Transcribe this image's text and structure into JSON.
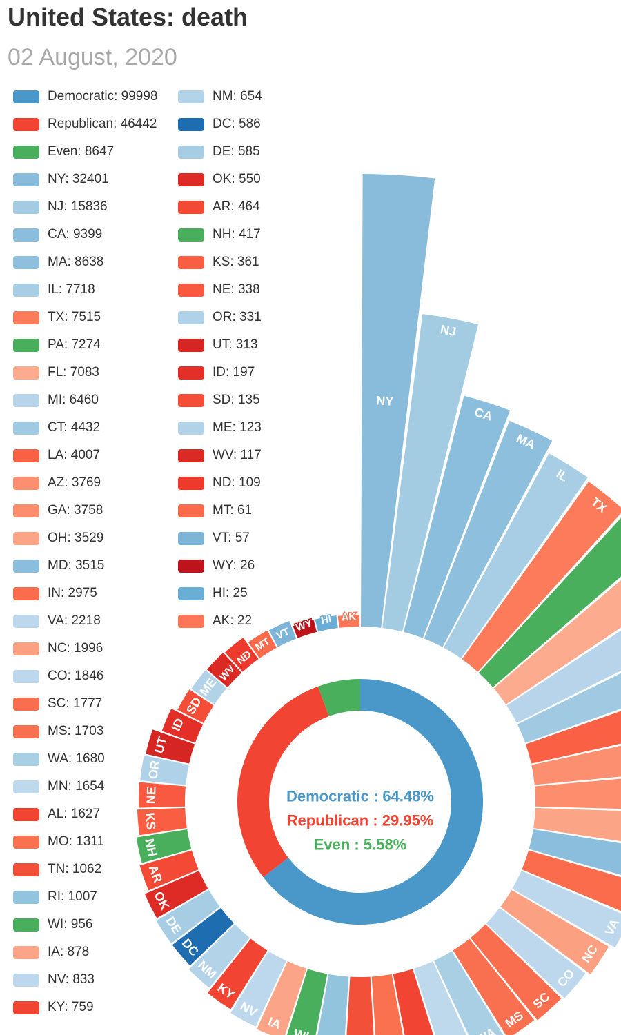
{
  "title": "United States: death",
  "subtitle": "02 August, 2020",
  "colors": {
    "Democratic": "#4a98c9",
    "Republican": "#f14432",
    "Even": "#4aaf5c"
  },
  "chart_data": {
    "type": "radial-bar",
    "parties": [
      {
        "name": "Democratic",
        "value": 99998,
        "color": "#4a98c9",
        "pct_label": "Democratic : 64.48%"
      },
      {
        "name": "Republican",
        "value": 46442,
        "color": "#f14432",
        "pct_label": "Republican : 29.95%"
      },
      {
        "name": "Even",
        "value": 8647,
        "color": "#4aaf5c",
        "pct_label": "Even : 5.58%"
      }
    ],
    "states": [
      {
        "name": "NY",
        "value": 32401,
        "color": "#89bcdb"
      },
      {
        "name": "NJ",
        "value": 15836,
        "color": "#a3cce3"
      },
      {
        "name": "CA",
        "value": 9399,
        "color": "#8bbedc"
      },
      {
        "name": "MA",
        "value": 8638,
        "color": "#8ebfdc"
      },
      {
        "name": "IL",
        "value": 7718,
        "color": "#a7cee4"
      },
      {
        "name": "TX",
        "value": 7515,
        "color": "#fb7b5b"
      },
      {
        "name": "PA",
        "value": 7274,
        "color": "#4aaf5c"
      },
      {
        "name": "FL",
        "value": 7083,
        "color": "#fcab8f"
      },
      {
        "name": "MI",
        "value": 6460,
        "color": "#b7d4ea"
      },
      {
        "name": "CT",
        "value": 4432,
        "color": "#9fcae1"
      },
      {
        "name": "LA",
        "value": 4007,
        "color": "#f96044"
      },
      {
        "name": "AZ",
        "value": 3769,
        "color": "#fc8f6f"
      },
      {
        "name": "GA",
        "value": 3758,
        "color": "#fc8e6e"
      },
      {
        "name": "OH",
        "value": 3529,
        "color": "#fca486"
      },
      {
        "name": "MD",
        "value": 3515,
        "color": "#8bbedc"
      },
      {
        "name": "IN",
        "value": 2975,
        "color": "#fa6c4c"
      },
      {
        "name": "VA",
        "value": 2218,
        "color": "#bdd8ec"
      },
      {
        "name": "NC",
        "value": 1996,
        "color": "#fca082"
      },
      {
        "name": "CO",
        "value": 1846,
        "color": "#bdd7ec"
      },
      {
        "name": "SC",
        "value": 1777,
        "color": "#f96e4e"
      },
      {
        "name": "MS",
        "value": 1703,
        "color": "#f8704f"
      },
      {
        "name": "WA",
        "value": 1680,
        "color": "#a9cfe5"
      },
      {
        "name": "MN",
        "value": 1654,
        "color": "#bed8ec"
      },
      {
        "name": "AL",
        "value": 1627,
        "color": "#f14432"
      },
      {
        "name": "MO",
        "value": 1311,
        "color": "#f9714f"
      },
      {
        "name": "TN",
        "value": 1062,
        "color": "#f3503a"
      },
      {
        "name": "RI",
        "value": 1007,
        "color": "#93c4de"
      },
      {
        "name": "WI",
        "value": 956,
        "color": "#4aaf5c"
      },
      {
        "name": "IA",
        "value": 878,
        "color": "#fca487"
      },
      {
        "name": "NV",
        "value": 833,
        "color": "#bdd7ec"
      },
      {
        "name": "KY",
        "value": 759,
        "color": "#f14432"
      },
      {
        "name": "NM",
        "value": 654,
        "color": "#b3d3e8"
      },
      {
        "name": "DC",
        "value": 586,
        "color": "#1f6db1"
      },
      {
        "name": "DE",
        "value": 585,
        "color": "#a6cde4"
      },
      {
        "name": "OK",
        "value": 550,
        "color": "#df2b25"
      },
      {
        "name": "AR",
        "value": 464,
        "color": "#f24a35"
      },
      {
        "name": "NH",
        "value": 417,
        "color": "#4aaf5c"
      },
      {
        "name": "KS",
        "value": 361,
        "color": "#fa5e42"
      },
      {
        "name": "NE",
        "value": 338,
        "color": "#f85940"
      },
      {
        "name": "OR",
        "value": 331,
        "color": "#b0d2e8"
      },
      {
        "name": "UT",
        "value": 313,
        "color": "#d62623"
      },
      {
        "name": "ID",
        "value": 197,
        "color": "#e32f27"
      },
      {
        "name": "SD",
        "value": 135,
        "color": "#f44e39"
      },
      {
        "name": "ME",
        "value": 123,
        "color": "#b2d2e8"
      },
      {
        "name": "WV",
        "value": 117,
        "color": "#db2a24"
      },
      {
        "name": "ND",
        "value": 109,
        "color": "#ee3a2c"
      },
      {
        "name": "MT",
        "value": 61,
        "color": "#fb6a4a"
      },
      {
        "name": "VT",
        "value": 57,
        "color": "#7db5d9"
      },
      {
        "name": "WY",
        "value": 26,
        "color": "#bc141a"
      },
      {
        "name": "HI",
        "value": 25,
        "color": "#6aaed6"
      },
      {
        "name": "AK",
        "value": 22,
        "color": "#fb7757"
      }
    ]
  }
}
